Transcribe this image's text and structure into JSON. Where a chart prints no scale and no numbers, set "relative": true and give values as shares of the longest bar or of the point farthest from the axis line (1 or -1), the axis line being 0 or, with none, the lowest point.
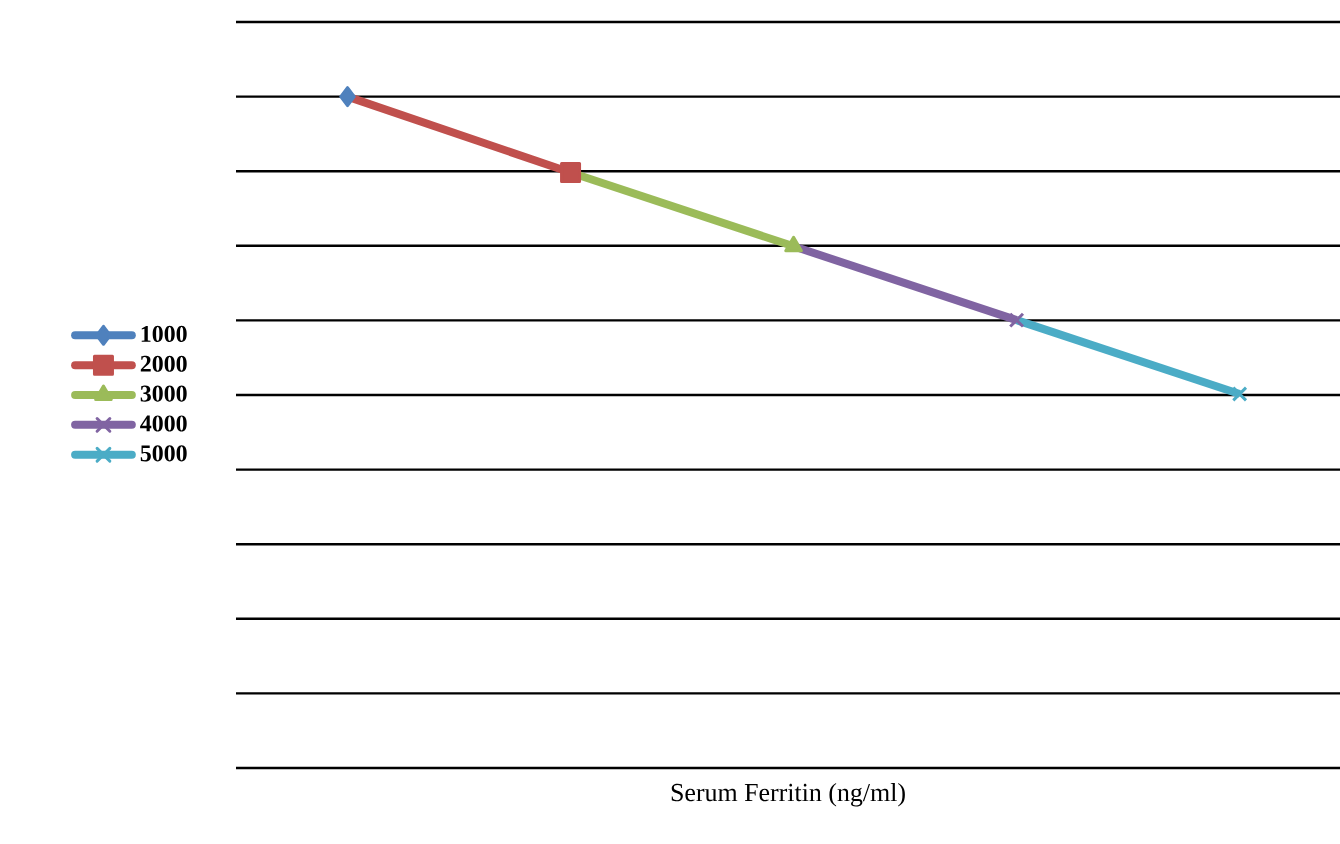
{
  "chart_data": {
    "type": "line",
    "xlabel": "Serum Ferritin (ng/ml)",
    "categories": [
      null,
      null,
      null,
      null,
      null
    ],
    "relative": true,
    "grid": "y",
    "legend": "left",
    "series": [
      {
        "name": "1000",
        "color": "#4f81bd",
        "marker": "diamond",
        "values": [
          1,
          null,
          null,
          null,
          null
        ]
      },
      {
        "name": "2000",
        "color": "#c0504d",
        "marker": "square",
        "values": [
          1,
          0.887,
          null,
          null,
          null
        ]
      },
      {
        "name": "3000",
        "color": "#9bbb59",
        "marker": "triangle",
        "values": [
          null,
          0.887,
          0.777,
          null,
          null
        ]
      },
      {
        "name": "4000",
        "color": "#8064a2",
        "marker": "cross",
        "values": [
          null,
          null,
          0.777,
          0.667,
          null
        ]
      },
      {
        "name": "5000",
        "color": "#4bacc6",
        "marker": "cross",
        "values": [
          null,
          null,
          null,
          0.667,
          0.557
        ]
      }
    ]
  }
}
